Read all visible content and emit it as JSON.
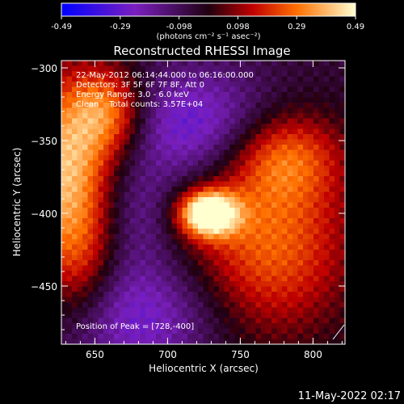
{
  "chart_data": {
    "type": "heatmap",
    "title": "Reconstructed RHESSI Image",
    "xlabel": "Heliocentric X (arcsec)",
    "ylabel": "Heliocentric Y (arcsec)",
    "xlim": [
      627,
      822
    ],
    "ylim": [
      -490,
      -295
    ],
    "x_ticks": [
      650,
      700,
      750,
      800
    ],
    "y_ticks": [
      -300,
      -350,
      -400,
      -450
    ],
    "colorbar": {
      "min": -0.49,
      "max": 0.49,
      "ticks": [
        "-0.49",
        "-0.29",
        "-0.098",
        "0.098",
        "0.29",
        "0.49"
      ],
      "unit_label": "(photons cm⁻² s⁻¹ asec⁻²)"
    },
    "annotations": [
      "22-May-2012 06:14:44.000 to 06:16:00.000",
      "Detectors: 3F 5F 6F 7F 8F, Att 0",
      "Energy Range: 3.0 - 6.0 keV",
      "Clean    Total counts: 3.57E+04"
    ],
    "peak_label": "Position of Peak = [728,-400]",
    "peak": {
      "x": 728,
      "y": -400,
      "value": 0.49
    },
    "sources": [
      {
        "x": 728,
        "y": -400,
        "amp": 1.05,
        "sx": 14,
        "sy": 11
      },
      {
        "x": 770,
        "y": -420,
        "amp": 0.55,
        "sx": 40,
        "sy": 45
      },
      {
        "x": 780,
        "y": -360,
        "amp": 0.45,
        "sx": 28,
        "sy": 22
      },
      {
        "x": 630,
        "y": -370,
        "amp": 0.75,
        "sx": 22,
        "sy": 45
      },
      {
        "x": 660,
        "y": -330,
        "amp": 0.55,
        "sx": 18,
        "sy": 22
      },
      {
        "x": 640,
        "y": -440,
        "amp": 0.3,
        "sx": 18,
        "sy": 30
      },
      {
        "x": 720,
        "y": -340,
        "amp": -0.45,
        "sx": 38,
        "sy": 28
      },
      {
        "x": 680,
        "y": -470,
        "amp": -0.4,
        "sx": 40,
        "sy": 30
      },
      {
        "x": 680,
        "y": -400,
        "amp": -0.2,
        "sx": 18,
        "sy": 25
      }
    ],
    "baseline": -0.05
  },
  "timestamp": "11-May-2022 02:17"
}
